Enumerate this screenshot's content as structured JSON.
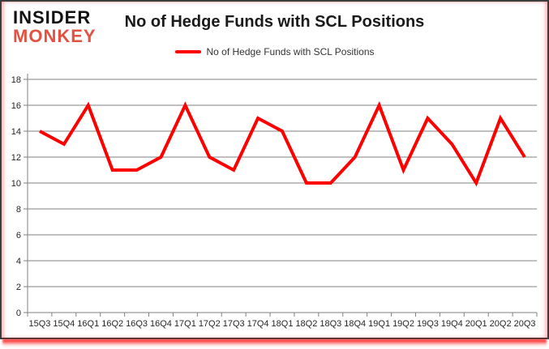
{
  "header": {
    "brand_line1": "INSIDER",
    "brand_line2": "MONKEY",
    "title": "No of Hedge Funds with SCL Positions"
  },
  "legend": {
    "label": "No of Hedge Funds with SCL Positions"
  },
  "chart_data": {
    "type": "line",
    "title": "No of Hedge Funds with SCL Positions",
    "categories": [
      "15Q3",
      "15Q4",
      "16Q1",
      "16Q2",
      "16Q3",
      "16Q4",
      "17Q1",
      "17Q2",
      "17Q3",
      "17Q4",
      "18Q1",
      "18Q2",
      "18Q3",
      "18Q4",
      "19Q1",
      "19Q2",
      "19Q3",
      "19Q4",
      "20Q1",
      "20Q2",
      "20Q3"
    ],
    "series": [
      {
        "name": "No of Hedge Funds with SCL Positions",
        "color": "#ff0000",
        "values": [
          14,
          13,
          16,
          11,
          11,
          12,
          16,
          12,
          11,
          15,
          14,
          10,
          10,
          12,
          16,
          11,
          15,
          13,
          10,
          15,
          12
        ]
      }
    ],
    "xlabel": "",
    "ylabel": "",
    "ylim": [
      0,
      18
    ],
    "ytick_step": 2,
    "grid": true,
    "legend_position": "top"
  },
  "colors": {
    "line": "#ff0000",
    "grid": "#808080",
    "axis": "#808080",
    "tick_text": "#262626",
    "brand_black": "#111111",
    "brand_red": "#e25242"
  }
}
